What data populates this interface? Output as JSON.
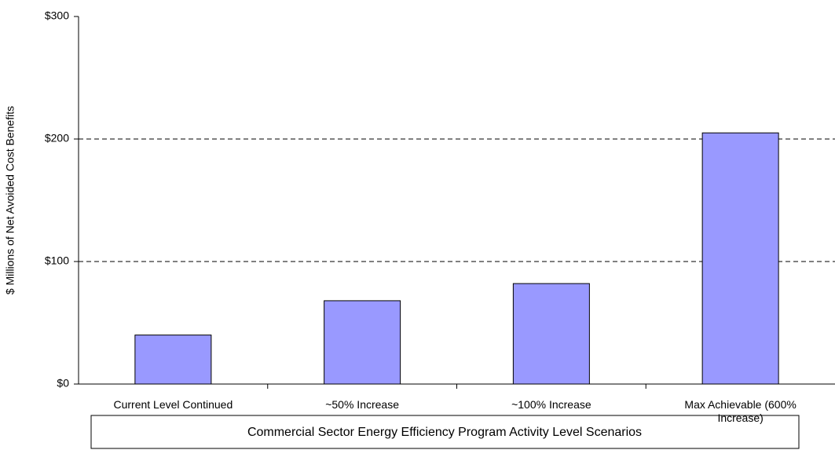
{
  "chart_data": {
    "type": "bar",
    "x_label": "Commercial Sector Energy Efficiency Program Activity Level Scenarios",
    "y_label": "$ Millions of Net Avoided Cost Benefits",
    "categories": [
      "Current Level Continued",
      "~50% Increase",
      "~100% Increase",
      "Max Achievable (600% Increase)"
    ],
    "values": [
      40,
      68,
      82,
      205
    ],
    "color": "#9999ff",
    "ylim": [
      0,
      300
    ],
    "yticks": [
      {
        "value": 0,
        "label": "$0"
      },
      {
        "value": 100,
        "label": "$100"
      },
      {
        "value": 200,
        "label": "$200"
      },
      {
        "value": 300,
        "label": "$300"
      }
    ],
    "grid": true
  }
}
